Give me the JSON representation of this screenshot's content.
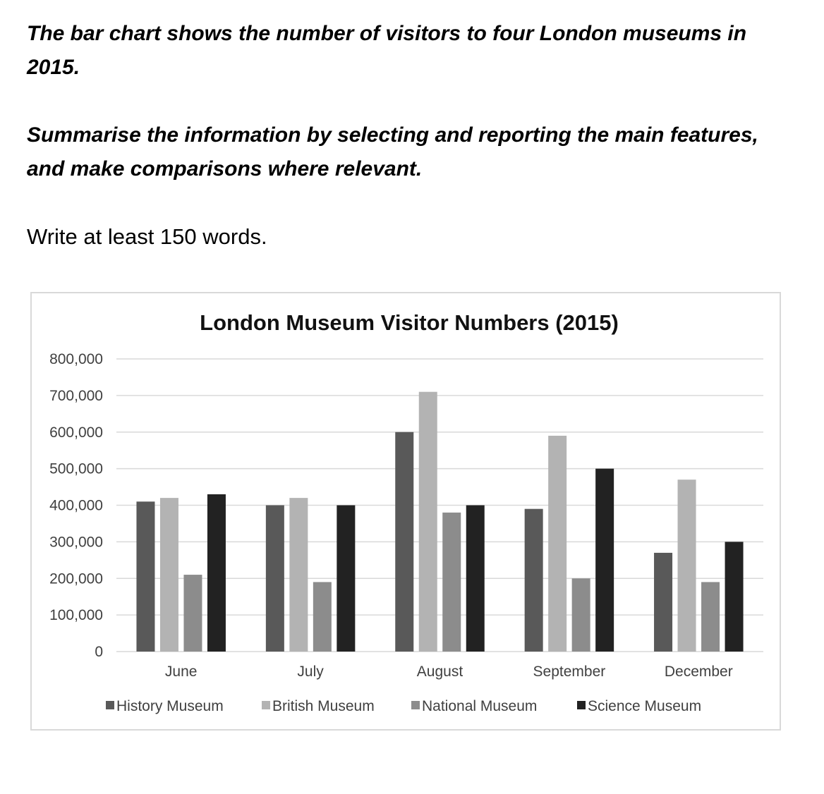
{
  "prompt": {
    "line1": "The bar chart shows the number of visitors to four London museums in 2015.",
    "line2": "Summarise the information by selecting and reporting the main features, and make comparisons where relevant.",
    "line3": "Write at least 150 words."
  },
  "chart_data": {
    "type": "bar",
    "title": "London Museum Visitor Numbers (2015)",
    "categories": [
      "June",
      "July",
      "August",
      "September",
      "December"
    ],
    "series": [
      {
        "name": "History Museum",
        "color": "#595959",
        "values": [
          410000,
          400000,
          600000,
          390000,
          270000
        ]
      },
      {
        "name": "British Museum",
        "color": "#b3b3b3",
        "values": [
          420000,
          420000,
          710000,
          590000,
          470000
        ]
      },
      {
        "name": "National Museum",
        "color": "#8c8c8c",
        "values": [
          210000,
          190000,
          380000,
          200000,
          190000
        ]
      },
      {
        "name": "Science Museum",
        "color": "#222222",
        "values": [
          430000,
          400000,
          400000,
          500000,
          300000
        ]
      }
    ],
    "ylim": [
      0,
      800000
    ],
    "yticks": [
      0,
      100000,
      200000,
      300000,
      400000,
      500000,
      600000,
      700000,
      800000
    ],
    "ytick_labels": [
      "0",
      "100,000",
      "200,000",
      "300,000",
      "400,000",
      "500,000",
      "600,000",
      "700,000",
      "800,000"
    ],
    "grid": true,
    "legend": "bottom"
  }
}
